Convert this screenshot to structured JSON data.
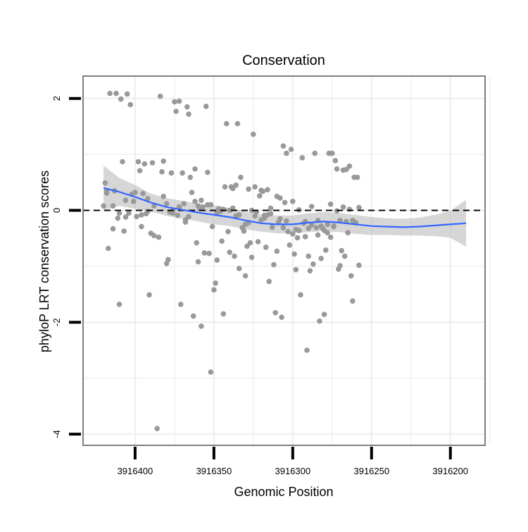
{
  "chart_data": {
    "type": "scatter",
    "title": "Conservation",
    "xlabel": "Genomic Position",
    "ylabel": "phyloP LRT conservation scores",
    "x_reversed": true,
    "xlim": [
      3916433,
      3916178
    ],
    "ylim": [
      -4.2,
      2.4
    ],
    "x_ticks": [
      3916400,
      3916350,
      3916300,
      3916250,
      3916200
    ],
    "x_tick_labels": [
      "3916400",
      "3916350",
      "3916300",
      "3916250",
      "3916200"
    ],
    "y_ticks": [
      -4,
      -2,
      0,
      2
    ],
    "y_tick_labels": [
      "-4",
      "-2",
      "0",
      "2"
    ],
    "grid": true,
    "reference_line": {
      "y": 0,
      "style": "dashed",
      "color": "#000000"
    },
    "colors": {
      "points": "#999999",
      "smooth": "#3366ff",
      "band": "#bbbbbb",
      "panel": "#ffffff",
      "grid": "#f0f0f0",
      "frame": "#7f7f7f"
    },
    "points": [
      [
        3916420,
        0.08
      ],
      [
        3916419,
        0.49
      ],
      [
        3916418,
        0.31
      ],
      [
        3916417,
        -0.68
      ],
      [
        3916416,
        2.09
      ],
      [
        3916414,
        -0.33
      ],
      [
        3916413,
        0.35
      ],
      [
        3916412,
        2.09
      ],
      [
        3916411,
        -0.14
      ],
      [
        3916410,
        -1.68
      ],
      [
        3916409,
        1.99
      ],
      [
        3916408,
        0.87
      ],
      [
        3916407,
        -0.37
      ],
      [
        3916406,
        0.18
      ],
      [
        3916405,
        2.08
      ],
      [
        3916404,
        -0.05
      ],
      [
        3916403,
        1.89
      ],
      [
        3916402,
        0.29
      ],
      [
        3916401,
        0.16
      ],
      [
        3916399,
        -0.11
      ],
      [
        3916398,
        0.87
      ],
      [
        3916397,
        0.71
      ],
      [
        3916396,
        -0.29
      ],
      [
        3916395,
        0.3
      ],
      [
        3916394,
        0.83
      ],
      [
        3916393,
        -0.06
      ],
      [
        3916392,
        0.21
      ],
      [
        3916391,
        -1.51
      ],
      [
        3916390,
        -0.41
      ],
      [
        3916389,
        0.85
      ],
      [
        3916388,
        -0.45
      ],
      [
        3916386,
        -3.9
      ],
      [
        3916385,
        -0.48
      ],
      [
        3916384,
        2.04
      ],
      [
        3916383,
        0.69
      ],
      [
        3916382,
        0.88
      ],
      [
        3916380,
        -0.95
      ],
      [
        3916379,
        -0.88
      ],
      [
        3916378,
        -0.03
      ],
      [
        3916377,
        0.67
      ],
      [
        3916376,
        -0.05
      ],
      [
        3916375,
        1.94
      ],
      [
        3916374,
        1.77
      ],
      [
        3916373,
        -0.09
      ],
      [
        3916372,
        1.95
      ],
      [
        3916371,
        -1.68
      ],
      [
        3916370,
        0.67
      ],
      [
        3916369,
        0.12
      ],
      [
        3916368,
        -0.17
      ],
      [
        3916367,
        1.85
      ],
      [
        3916366,
        1.72
      ],
      [
        3916365,
        0.59
      ],
      [
        3916364,
        0.32
      ],
      [
        3916363,
        -1.89
      ],
      [
        3916362,
        0.74
      ],
      [
        3916361,
        -0.58
      ],
      [
        3916360,
        -0.92
      ],
      [
        3916359,
        0.03
      ],
      [
        3916358,
        -2.07
      ],
      [
        3916357,
        0.06
      ],
      [
        3916356,
        -0.76
      ],
      [
        3916355,
        1.86
      ],
      [
        3916354,
        0.68
      ],
      [
        3916353,
        -0.77
      ],
      [
        3916352,
        -2.89
      ],
      [
        3916351,
        -0.29
      ],
      [
        3916350,
        -1.42
      ],
      [
        3916349,
        -1.3
      ],
      [
        3916348,
        -0.89
      ],
      [
        3916347,
        0.03
      ],
      [
        3916346,
        -0.02
      ],
      [
        3916345,
        -0.55
      ],
      [
        3916344,
        -1.85
      ],
      [
        3916343,
        0.42
      ],
      [
        3916342,
        1.55
      ],
      [
        3916341,
        -0.38
      ],
      [
        3916340,
        -0.75
      ],
      [
        3916339,
        0.42
      ],
      [
        3916338,
        0.39
      ],
      [
        3916337,
        -0.82
      ],
      [
        3916336,
        0.45
      ],
      [
        3916335,
        1.55
      ],
      [
        3916334,
        -1.04
      ],
      [
        3916333,
        0.59
      ],
      [
        3916332,
        -0.31
      ],
      [
        3916331,
        -0.37
      ],
      [
        3916330,
        -1.17
      ],
      [
        3916329,
        -0.64
      ],
      [
        3916328,
        0.38
      ],
      [
        3916327,
        -0.58
      ],
      [
        3916326,
        -0.84
      ],
      [
        3916325,
        1.36
      ],
      [
        3916324,
        0.42
      ],
      [
        3916323,
        -0.03
      ],
      [
        3916322,
        -0.56
      ],
      [
        3916321,
        0.26
      ],
      [
        3916320,
        0.36
      ],
      [
        3916319,
        0.34
      ],
      [
        3916318,
        -0.09
      ],
      [
        3916317,
        -0.66
      ],
      [
        3916316,
        0.37
      ],
      [
        3916315,
        -1.27
      ],
      [
        3916314,
        0.04
      ],
      [
        3916313,
        -0.3
      ],
      [
        3916312,
        -0.97
      ],
      [
        3916311,
        -1.83
      ],
      [
        3916310,
        -0.73
      ],
      [
        3916309,
        -0.21
      ],
      [
        3916308,
        0.22
      ],
      [
        3916307,
        -1.91
      ],
      [
        3916306,
        1.15
      ],
      [
        3916305,
        0.14
      ],
      [
        3916304,
        1.02
      ],
      [
        3916303,
        -0.38
      ],
      [
        3916302,
        -0.62
      ],
      [
        3916301,
        1.09
      ],
      [
        3916300,
        0.16
      ],
      [
        3916299,
        -0.78
      ],
      [
        3916298,
        -1.06
      ],
      [
        3916297,
        -0.49
      ],
      [
        3916296,
        0.01
      ],
      [
        3916295,
        -1.51
      ],
      [
        3916294,
        0.94
      ],
      [
        3916293,
        -0.23
      ],
      [
        3916292,
        -0.47
      ],
      [
        3916291,
        -2.5
      ],
      [
        3916290,
        -0.82
      ],
      [
        3916289,
        -1.08
      ],
      [
        3916288,
        0.07
      ],
      [
        3916287,
        -0.96
      ],
      [
        3916286,
        1.02
      ],
      [
        3916285,
        -0.31
      ],
      [
        3916284,
        -0.44
      ],
      [
        3916283,
        -1.98
      ],
      [
        3916282,
        -0.86
      ],
      [
        3916281,
        -0.32
      ],
      [
        3916280,
        -1.86
      ],
      [
        3916279,
        -0.71
      ],
      [
        3916278,
        -0.25
      ],
      [
        3916277,
        1.02
      ],
      [
        3916276,
        0.11
      ],
      [
        3916275,
        1.02
      ],
      [
        3916274,
        -0.28
      ],
      [
        3916273,
        0.89
      ],
      [
        3916272,
        0.74
      ],
      [
        3916271,
        -1.05
      ],
      [
        3916270,
        -0.99
      ],
      [
        3916269,
        -0.72
      ],
      [
        3916268,
        0.72
      ],
      [
        3916267,
        -0.82
      ],
      [
        3916266,
        0.73
      ],
      [
        3916265,
        -0.4
      ],
      [
        3916264,
        0.79
      ],
      [
        3916263,
        -1.17
      ],
      [
        3916262,
        -1.62
      ],
      [
        3916261,
        0.59
      ],
      [
        3916260,
        -0.22
      ],
      [
        3916259,
        0.59
      ],
      [
        3916258,
        -0.98
      ],
      [
        3916418,
        0.35
      ],
      [
        3916414,
        0.08
      ],
      [
        3916410,
        -0.05
      ],
      [
        3916406,
        -0.12
      ],
      [
        3916400,
        0.32
      ],
      [
        3916396,
        -0.08
      ],
      [
        3916392,
        -0.02
      ],
      [
        3916388,
        0.08
      ],
      [
        3916380,
        0.12
      ],
      [
        3916372,
        0.06
      ],
      [
        3916366,
        -0.11
      ],
      [
        3916362,
        0.16
      ],
      [
        3916358,
        0.18
      ],
      [
        3916352,
        0.1
      ],
      [
        3916348,
        -0.04
      ],
      [
        3916344,
        0.02
      ],
      [
        3916338,
        0.04
      ],
      [
        3916334,
        -0.08
      ],
      [
        3916328,
        -0.22
      ],
      [
        3916324,
        -0.1
      ],
      [
        3916318,
        -0.14
      ],
      [
        3916314,
        -0.06
      ],
      [
        3916308,
        -0.15
      ],
      [
        3916304,
        -0.19
      ],
      [
        3916298,
        -0.34
      ],
      [
        3916292,
        -0.2
      ],
      [
        3916288,
        -0.26
      ],
      [
        3916282,
        -0.28
      ],
      [
        3916278,
        -0.4
      ],
      [
        3916274,
        -0.29
      ],
      [
        3916270,
        -0.18
      ],
      [
        3916266,
        -0.2
      ],
      [
        3916262,
        -0.18
      ],
      [
        3916258,
        0.05
      ],
      [
        3916382,
        0.25
      ],
      [
        3916376,
        0.0
      ],
      [
        3916368,
        -0.21
      ],
      [
        3916360,
        0.08
      ],
      [
        3916354,
        0.1
      ],
      [
        3916346,
        0.02
      ],
      [
        3916340,
        -0.0
      ],
      [
        3916336,
        -0.1
      ],
      [
        3916330,
        -0.25
      ],
      [
        3916326,
        0.0
      ],
      [
        3916320,
        -0.17
      ],
      [
        3916316,
        -0.08
      ],
      [
        3916310,
        0.25
      ],
      [
        3916306,
        -0.31
      ],
      [
        3916300,
        -0.42
      ],
      [
        3916296,
        -0.36
      ],
      [
        3916290,
        -0.32
      ],
      [
        3916284,
        -0.18
      ],
      [
        3916280,
        -0.36
      ],
      [
        3916276,
        -0.48
      ],
      [
        3916272,
        -0.01
      ],
      [
        3916268,
        0.06
      ],
      [
        3916264,
        0.02
      ]
    ],
    "smooth": [
      [
        3916420,
        0.4
      ],
      [
        3916410,
        0.33
      ],
      [
        3916400,
        0.24
      ],
      [
        3916390,
        0.14
      ],
      [
        3916380,
        0.06
      ],
      [
        3916370,
        0.01
      ],
      [
        3916360,
        -0.04
      ],
      [
        3916350,
        -0.08
      ],
      [
        3916340,
        -0.12
      ],
      [
        3916330,
        -0.18
      ],
      [
        3916320,
        -0.23
      ],
      [
        3916310,
        -0.25
      ],
      [
        3916300,
        -0.25
      ],
      [
        3916290,
        -0.22
      ],
      [
        3916280,
        -0.2
      ],
      [
        3916270,
        -0.22
      ],
      [
        3916260,
        -0.25
      ],
      [
        3916250,
        -0.28
      ],
      [
        3916240,
        -0.29
      ],
      [
        3916230,
        -0.3
      ],
      [
        3916220,
        -0.29
      ],
      [
        3916210,
        -0.27
      ],
      [
        3916200,
        -0.25
      ],
      [
        3916190,
        -0.23
      ]
    ],
    "band_upper": [
      0.8,
      0.58,
      0.45,
      0.3,
      0.22,
      0.17,
      0.12,
      0.09,
      0.04,
      -0.02,
      -0.08,
      -0.09,
      -0.09,
      -0.05,
      -0.03,
      -0.05,
      -0.08,
      -0.12,
      -0.14,
      -0.15,
      -0.13,
      -0.08,
      -0.01,
      0.19
    ],
    "band_lower": [
      0.0,
      0.08,
      0.03,
      -0.02,
      -0.1,
      -0.15,
      -0.2,
      -0.25,
      -0.28,
      -0.34,
      -0.38,
      -0.41,
      -0.41,
      -0.39,
      -0.37,
      -0.39,
      -0.42,
      -0.44,
      -0.44,
      -0.45,
      -0.45,
      -0.46,
      -0.49,
      -0.65
    ]
  }
}
